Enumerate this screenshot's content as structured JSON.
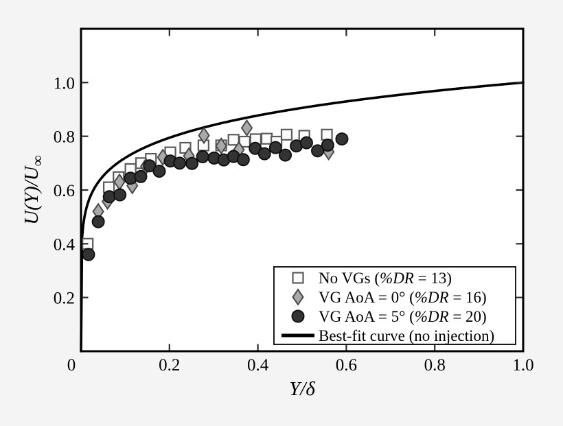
{
  "figure_type": "scatter-plot-with-best-fit-curve",
  "chart_data": {
    "type": "scatter",
    "title": "",
    "xlabel": "Y/δ",
    "ylabel": "U(Y)/U∞",
    "ylabel_display": {
      "main": "U(Y)/U",
      "sub": "∞"
    },
    "xlim": [
      0,
      1.0
    ],
    "ylim": [
      0,
      1.2
    ],
    "grid": false,
    "legend_position": "bottom-right",
    "x_ticks": {
      "values": [
        0,
        0.2,
        0.4,
        0.6,
        0.8,
        1.0
      ],
      "labels": [
        "0",
        "0.2",
        "0.4",
        "0.6",
        "0.8",
        "1.0"
      ]
    },
    "y_ticks": {
      "values": [
        0.2,
        0.4,
        0.6,
        0.8,
        1.0
      ],
      "labels": [
        "0.2",
        "0.4",
        "0.6",
        "0.8",
        "1.0"
      ]
    },
    "series": [
      {
        "id": "no-vgs",
        "name": "No VGs (%DR = 13)",
        "marker": "square",
        "points": [
          [
            0.015,
            0.4
          ],
          [
            0.063,
            0.61
          ],
          [
            0.085,
            0.648
          ],
          [
            0.112,
            0.678
          ],
          [
            0.136,
            0.7
          ],
          [
            0.158,
            0.716
          ],
          [
            0.202,
            0.74
          ],
          [
            0.236,
            0.757
          ],
          [
            0.277,
            0.766
          ],
          [
            0.317,
            0.766
          ],
          [
            0.345,
            0.787
          ],
          [
            0.37,
            0.78
          ],
          [
            0.395,
            0.789
          ],
          [
            0.42,
            0.791
          ],
          [
            0.442,
            0.78
          ],
          [
            0.465,
            0.806
          ],
          [
            0.505,
            0.802
          ],
          [
            0.556,
            0.806
          ]
        ]
      },
      {
        "id": "vg-aoa-0",
        "name": "VG AoA = 0° (%DR = 16)",
        "marker": "diamond",
        "points": [
          [
            0.039,
            0.52
          ],
          [
            0.06,
            0.558
          ],
          [
            0.087,
            0.63
          ],
          [
            0.116,
            0.616
          ],
          [
            0.147,
            0.688
          ],
          [
            0.185,
            0.722
          ],
          [
            0.244,
            0.727
          ],
          [
            0.278,
            0.803
          ],
          [
            0.317,
            0.764
          ],
          [
            0.357,
            0.75
          ],
          [
            0.375,
            0.831
          ],
          [
            0.56,
            0.742
          ]
        ]
      },
      {
        "id": "vg-aoa-5",
        "name": "VG AoA = 5° (%DR = 20)",
        "marker": "circle",
        "points": [
          [
            0.017,
            0.36
          ],
          [
            0.039,
            0.482
          ],
          [
            0.064,
            0.575
          ],
          [
            0.088,
            0.582
          ],
          [
            0.112,
            0.644
          ],
          [
            0.135,
            0.65
          ],
          [
            0.155,
            0.69
          ],
          [
            0.177,
            0.67
          ],
          [
            0.202,
            0.708
          ],
          [
            0.223,
            0.7
          ],
          [
            0.251,
            0.699
          ],
          [
            0.275,
            0.724
          ],
          [
            0.301,
            0.719
          ],
          [
            0.323,
            0.712
          ],
          [
            0.345,
            0.725
          ],
          [
            0.367,
            0.713
          ],
          [
            0.394,
            0.755
          ],
          [
            0.415,
            0.735
          ],
          [
            0.44,
            0.758
          ],
          [
            0.462,
            0.73
          ],
          [
            0.487,
            0.764
          ],
          [
            0.51,
            0.776
          ],
          [
            0.535,
            0.746
          ],
          [
            0.558,
            0.767
          ],
          [
            0.59,
            0.79
          ]
        ]
      }
    ],
    "best_fit": {
      "name": "Best-fit curve (no injection)",
      "type": "power_law",
      "expression": "U(Y)/U∞ = (Y/δ)^(1/7)",
      "exponent": 0.142857,
      "x_range": [
        0,
        1.0
      ]
    }
  },
  "legend": {
    "items": [
      {
        "marker": "square",
        "pre": "No VGs (",
        "italic": "%DR",
        "post": " = 13)"
      },
      {
        "marker": "diamond",
        "pre": "VG AoA = 0° (",
        "italic": "%DR",
        "post": " = 16)"
      },
      {
        "marker": "circle",
        "pre": "VG AoA = 5° (",
        "italic": "%DR",
        "post": " = 20)"
      },
      {
        "marker": "line",
        "pre": "Best-fit curve (no injection)",
        "italic": "",
        "post": ""
      }
    ]
  },
  "colors": {
    "background": "#f4f4f4",
    "plot_background": "#ffffff",
    "frame": "#000000",
    "tick": "#2b2b2b",
    "tick_label": "#000000",
    "curve": "#000000",
    "square_fill": "#fbfbfb",
    "square_stroke": "#5a5a5a",
    "diamond_fill": "#a9a9a9",
    "diamond_stroke": "#4a4a4a",
    "circle_fill": "#333333",
    "circle_stroke": "#0d0d0d"
  }
}
